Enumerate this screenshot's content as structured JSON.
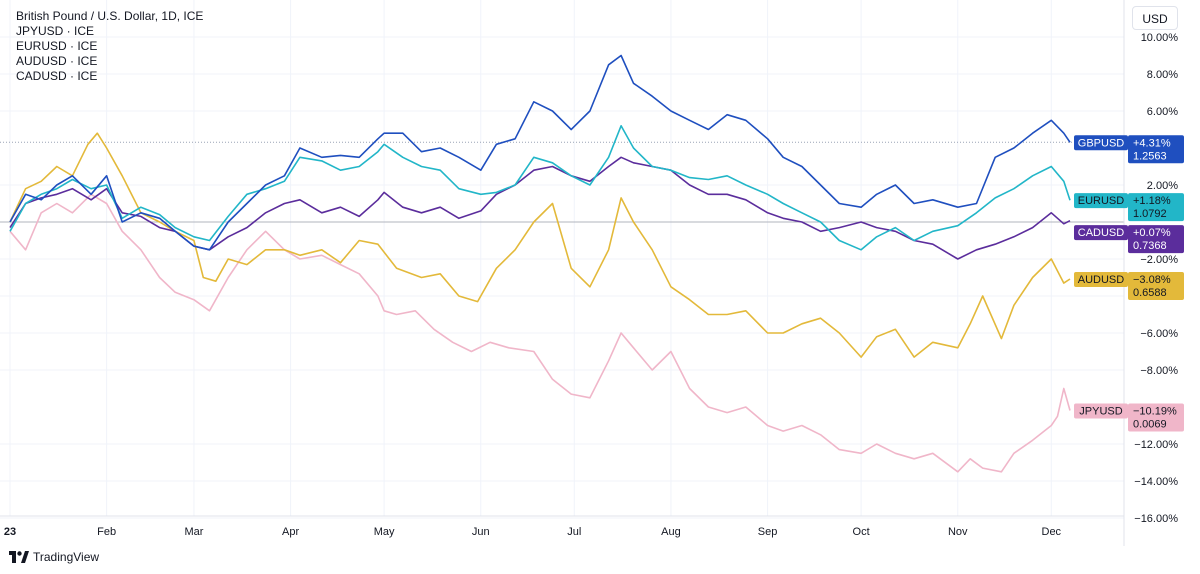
{
  "legend": {
    "title": "British Pound / U.S. Dollar, 1D, ICE",
    "items": [
      "JPYUSD · ICE",
      "EURUSD · ICE",
      "AUDUSD · ICE",
      "CADUSD · ICE"
    ]
  },
  "currency_button": "USD",
  "brand": "TradingView",
  "chart_data": {
    "type": "line",
    "x_tick_labels": [
      "23",
      "Feb",
      "Mar",
      "Apr",
      "May",
      "Jun",
      "Jul",
      "Aug",
      "Sep",
      "Oct",
      "Nov",
      "Dec"
    ],
    "y_tick_labels": [
      "10.00%",
      "8.00%",
      "6.00%",
      "2.00%",
      "−2.00%",
      "−4.00%",
      "−6.00%",
      "−8.00%",
      "−12.00%",
      "−14.00%",
      "−16.00%"
    ],
    "y_tick_values": [
      10,
      8,
      6,
      2,
      -2,
      -4,
      -6,
      -8,
      -12,
      -14,
      -16
    ],
    "ylim": [
      -16,
      10
    ],
    "xlim": [
      0,
      340
    ],
    "x_tick_positions": [
      0,
      31,
      59,
      90,
      120,
      151,
      181,
      212,
      243,
      273,
      304,
      334
    ],
    "grid": true,
    "scale": "percent",
    "series": [
      {
        "name": "GBPUSD",
        "color": "#1f4fbf",
        "change": "+4.31%",
        "price": "1.2563",
        "last_pct": 4.31,
        "points": [
          [
            0,
            0
          ],
          [
            5,
            1.5
          ],
          [
            10,
            1.2
          ],
          [
            15,
            2.0
          ],
          [
            20,
            2.5
          ],
          [
            26,
            1.5
          ],
          [
            31,
            2.5
          ],
          [
            36,
            0
          ],
          [
            42,
            0.5
          ],
          [
            48,
            0.2
          ],
          [
            53,
            -0.5
          ],
          [
            59,
            -1.3
          ],
          [
            64,
            -1.5
          ],
          [
            70,
            0
          ],
          [
            76,
            1
          ],
          [
            82,
            2
          ],
          [
            88,
            2.5
          ],
          [
            93,
            4
          ],
          [
            100,
            3.5
          ],
          [
            106,
            3.6
          ],
          [
            112,
            3.5
          ],
          [
            118,
            4.5
          ],
          [
            120,
            4.8
          ],
          [
            126,
            4.8
          ],
          [
            132,
            3.8
          ],
          [
            138,
            4.0
          ],
          [
            144,
            3.5
          ],
          [
            151,
            2.8
          ],
          [
            156,
            4.2
          ],
          [
            162,
            4.5
          ],
          [
            168,
            6.5
          ],
          [
            174,
            6.0
          ],
          [
            180,
            5.0
          ],
          [
            186,
            6.0
          ],
          [
            192,
            8.5
          ],
          [
            196,
            9.0
          ],
          [
            200,
            7.5
          ],
          [
            206,
            6.8
          ],
          [
            212,
            6.0
          ],
          [
            218,
            5.5
          ],
          [
            224,
            5.0
          ],
          [
            230,
            5.8
          ],
          [
            236,
            5.5
          ],
          [
            243,
            4.5
          ],
          [
            248,
            3.5
          ],
          [
            254,
            3.0
          ],
          [
            260,
            2.0
          ],
          [
            266,
            1.0
          ],
          [
            273,
            0.8
          ],
          [
            278,
            1.5
          ],
          [
            284,
            2.0
          ],
          [
            290,
            1.0
          ],
          [
            296,
            1.2
          ],
          [
            304,
            0.8
          ],
          [
            310,
            1.0
          ],
          [
            316,
            3.5
          ],
          [
            322,
            4.0
          ],
          [
            328,
            4.8
          ],
          [
            334,
            5.5
          ],
          [
            338,
            4.8
          ],
          [
            340,
            4.31
          ]
        ]
      },
      {
        "name": "EURUSD",
        "color": "#22b6c8",
        "change": "+1.18%",
        "price": "1.0792",
        "last_pct": 1.18,
        "points": [
          [
            0,
            -0.5
          ],
          [
            5,
            1.0
          ],
          [
            10,
            1.5
          ],
          [
            15,
            1.8
          ],
          [
            20,
            2.3
          ],
          [
            26,
            1.8
          ],
          [
            31,
            2.0
          ],
          [
            36,
            0.2
          ],
          [
            42,
            0.8
          ],
          [
            48,
            0.4
          ],
          [
            53,
            -0.3
          ],
          [
            59,
            -0.8
          ],
          [
            64,
            -1.0
          ],
          [
            70,
            0.3
          ],
          [
            76,
            1.5
          ],
          [
            82,
            1.8
          ],
          [
            88,
            2.2
          ],
          [
            93,
            3.5
          ],
          [
            100,
            3.3
          ],
          [
            106,
            2.8
          ],
          [
            112,
            3.0
          ],
          [
            118,
            3.8
          ],
          [
            120,
            4.2
          ],
          [
            126,
            3.5
          ],
          [
            132,
            3.0
          ],
          [
            138,
            2.8
          ],
          [
            144,
            1.8
          ],
          [
            151,
            1.5
          ],
          [
            156,
            1.6
          ],
          [
            162,
            2.0
          ],
          [
            168,
            3.5
          ],
          [
            174,
            3.2
          ],
          [
            180,
            2.5
          ],
          [
            186,
            2.0
          ],
          [
            192,
            3.5
          ],
          [
            196,
            5.2
          ],
          [
            200,
            4.0
          ],
          [
            206,
            3.0
          ],
          [
            212,
            2.8
          ],
          [
            218,
            2.4
          ],
          [
            224,
            2.3
          ],
          [
            230,
            2.5
          ],
          [
            236,
            2.0
          ],
          [
            243,
            1.5
          ],
          [
            248,
            1.0
          ],
          [
            254,
            0.5
          ],
          [
            260,
            0
          ],
          [
            266,
            -1.0
          ],
          [
            273,
            -1.5
          ],
          [
            278,
            -0.8
          ],
          [
            284,
            -0.3
          ],
          [
            290,
            -1.0
          ],
          [
            296,
            -0.5
          ],
          [
            304,
            -0.2
          ],
          [
            310,
            0.5
          ],
          [
            316,
            1.3
          ],
          [
            322,
            1.8
          ],
          [
            328,
            2.5
          ],
          [
            334,
            3.0
          ],
          [
            338,
            2.2
          ],
          [
            340,
            1.18
          ]
        ]
      },
      {
        "name": "CADUSD",
        "color": "#5b2d9c",
        "change": "+0.07%",
        "price": "0.7368",
        "last_pct": 0.07,
        "points": [
          [
            0,
            -0.3
          ],
          [
            5,
            1.0
          ],
          [
            10,
            1.3
          ],
          [
            15,
            1.5
          ],
          [
            20,
            1.8
          ],
          [
            26,
            1.2
          ],
          [
            31,
            1.8
          ],
          [
            36,
            0.5
          ],
          [
            42,
            0.3
          ],
          [
            48,
            -0.3
          ],
          [
            53,
            -0.5
          ],
          [
            59,
            -1.3
          ],
          [
            64,
            -1.5
          ],
          [
            70,
            -0.8
          ],
          [
            76,
            -0.3
          ],
          [
            82,
            0.5
          ],
          [
            88,
            1.0
          ],
          [
            93,
            1.2
          ],
          [
            100,
            0.5
          ],
          [
            106,
            0.8
          ],
          [
            112,
            0.3
          ],
          [
            118,
            1.2
          ],
          [
            120,
            1.6
          ],
          [
            126,
            0.8
          ],
          [
            132,
            0.5
          ],
          [
            138,
            0.8
          ],
          [
            144,
            0.2
          ],
          [
            151,
            0.6
          ],
          [
            156,
            1.5
          ],
          [
            162,
            2.0
          ],
          [
            168,
            2.8
          ],
          [
            174,
            3.0
          ],
          [
            180,
            2.5
          ],
          [
            186,
            2.2
          ],
          [
            192,
            3.0
          ],
          [
            196,
            3.5
          ],
          [
            200,
            3.2
          ],
          [
            206,
            3.0
          ],
          [
            212,
            2.8
          ],
          [
            218,
            2.0
          ],
          [
            224,
            1.5
          ],
          [
            230,
            1.5
          ],
          [
            236,
            1.2
          ],
          [
            243,
            0.5
          ],
          [
            248,
            0.2
          ],
          [
            254,
            0
          ],
          [
            260,
            -0.5
          ],
          [
            266,
            -0.3
          ],
          [
            273,
            0
          ],
          [
            278,
            -0.3
          ],
          [
            284,
            -0.5
          ],
          [
            290,
            -1.0
          ],
          [
            296,
            -1.2
          ],
          [
            304,
            -2.0
          ],
          [
            310,
            -1.5
          ],
          [
            316,
            -1.2
          ],
          [
            322,
            -0.8
          ],
          [
            328,
            -0.3
          ],
          [
            334,
            0.5
          ],
          [
            338,
            -0.1
          ],
          [
            340,
            0.07
          ]
        ]
      },
      {
        "name": "AUDUSD",
        "color": "#e3b93a",
        "change": "−3.08%",
        "price": "0.6588",
        "last_pct": -3.08,
        "points": [
          [
            0,
            0
          ],
          [
            5,
            1.8
          ],
          [
            10,
            2.2
          ],
          [
            15,
            3.0
          ],
          [
            20,
            2.5
          ],
          [
            25,
            4.2
          ],
          [
            28,
            4.8
          ],
          [
            31,
            4.0
          ],
          [
            36,
            2.5
          ],
          [
            42,
            0.5
          ],
          [
            48,
            0
          ],
          [
            53,
            -0.5
          ],
          [
            59,
            -1.0
          ],
          [
            62,
            -3.0
          ],
          [
            66,
            -3.2
          ],
          [
            70,
            -2.0
          ],
          [
            76,
            -2.3
          ],
          [
            82,
            -1.5
          ],
          [
            88,
            -1.5
          ],
          [
            93,
            -1.8
          ],
          [
            100,
            -1.5
          ],
          [
            106,
            -2.2
          ],
          [
            112,
            -1.0
          ],
          [
            118,
            -1.2
          ],
          [
            124,
            -2.5
          ],
          [
            132,
            -3.0
          ],
          [
            138,
            -2.8
          ],
          [
            144,
            -4.0
          ],
          [
            150,
            -4.3
          ],
          [
            156,
            -2.5
          ],
          [
            162,
            -1.5
          ],
          [
            168,
            0
          ],
          [
            174,
            1.0
          ],
          [
            180,
            -2.5
          ],
          [
            186,
            -3.5
          ],
          [
            192,
            -1.5
          ],
          [
            196,
            1.3
          ],
          [
            200,
            0
          ],
          [
            206,
            -1.5
          ],
          [
            212,
            -3.5
          ],
          [
            218,
            -4.2
          ],
          [
            224,
            -5.0
          ],
          [
            230,
            -5.0
          ],
          [
            236,
            -4.8
          ],
          [
            243,
            -6.0
          ],
          [
            248,
            -6.0
          ],
          [
            254,
            -5.5
          ],
          [
            260,
            -5.2
          ],
          [
            266,
            -6.0
          ],
          [
            273,
            -7.3
          ],
          [
            278,
            -6.2
          ],
          [
            284,
            -5.8
          ],
          [
            290,
            -7.3
          ],
          [
            296,
            -6.5
          ],
          [
            304,
            -6.8
          ],
          [
            308,
            -5.5
          ],
          [
            312,
            -4.0
          ],
          [
            318,
            -6.3
          ],
          [
            322,
            -4.5
          ],
          [
            328,
            -3.0
          ],
          [
            334,
            -2.0
          ],
          [
            338,
            -3.3
          ],
          [
            340,
            -3.08
          ]
        ]
      },
      {
        "name": "JPYUSD",
        "color": "#f0b6c9",
        "change": "−10.19%",
        "price": "0.0069",
        "last_pct": -10.19,
        "points": [
          [
            0,
            -0.5
          ],
          [
            5,
            -1.5
          ],
          [
            10,
            0.5
          ],
          [
            15,
            1.0
          ],
          [
            20,
            0.5
          ],
          [
            26,
            1.5
          ],
          [
            31,
            1.0
          ],
          [
            36,
            -0.5
          ],
          [
            42,
            -1.5
          ],
          [
            48,
            -3.0
          ],
          [
            53,
            -3.8
          ],
          [
            59,
            -4.2
          ],
          [
            64,
            -4.8
          ],
          [
            70,
            -3.0
          ],
          [
            76,
            -1.5
          ],
          [
            82,
            -0.5
          ],
          [
            88,
            -1.5
          ],
          [
            93,
            -2.0
          ],
          [
            100,
            -1.8
          ],
          [
            106,
            -2.3
          ],
          [
            112,
            -2.8
          ],
          [
            118,
            -4.0
          ],
          [
            120,
            -4.8
          ],
          [
            124,
            -5.0
          ],
          [
            130,
            -4.8
          ],
          [
            136,
            -5.8
          ],
          [
            142,
            -6.5
          ],
          [
            148,
            -7.0
          ],
          [
            154,
            -6.5
          ],
          [
            160,
            -6.8
          ],
          [
            168,
            -7.0
          ],
          [
            174,
            -8.5
          ],
          [
            180,
            -9.3
          ],
          [
            186,
            -9.5
          ],
          [
            192,
            -7.5
          ],
          [
            196,
            -6.0
          ],
          [
            200,
            -6.8
          ],
          [
            206,
            -8.0
          ],
          [
            212,
            -7.0
          ],
          [
            218,
            -9.0
          ],
          [
            224,
            -10.0
          ],
          [
            230,
            -10.3
          ],
          [
            236,
            -10.0
          ],
          [
            243,
            -11.0
          ],
          [
            248,
            -11.3
          ],
          [
            254,
            -11.0
          ],
          [
            260,
            -11.5
          ],
          [
            266,
            -12.3
          ],
          [
            273,
            -12.5
          ],
          [
            278,
            -12.0
          ],
          [
            284,
            -12.5
          ],
          [
            290,
            -12.8
          ],
          [
            296,
            -12.5
          ],
          [
            304,
            -13.5
          ],
          [
            308,
            -12.8
          ],
          [
            312,
            -13.3
          ],
          [
            318,
            -13.5
          ],
          [
            322,
            -12.5
          ],
          [
            328,
            -11.8
          ],
          [
            334,
            -11.0
          ],
          [
            336,
            -10.5
          ],
          [
            338,
            -9.0
          ],
          [
            340,
            -10.19
          ]
        ]
      }
    ]
  }
}
